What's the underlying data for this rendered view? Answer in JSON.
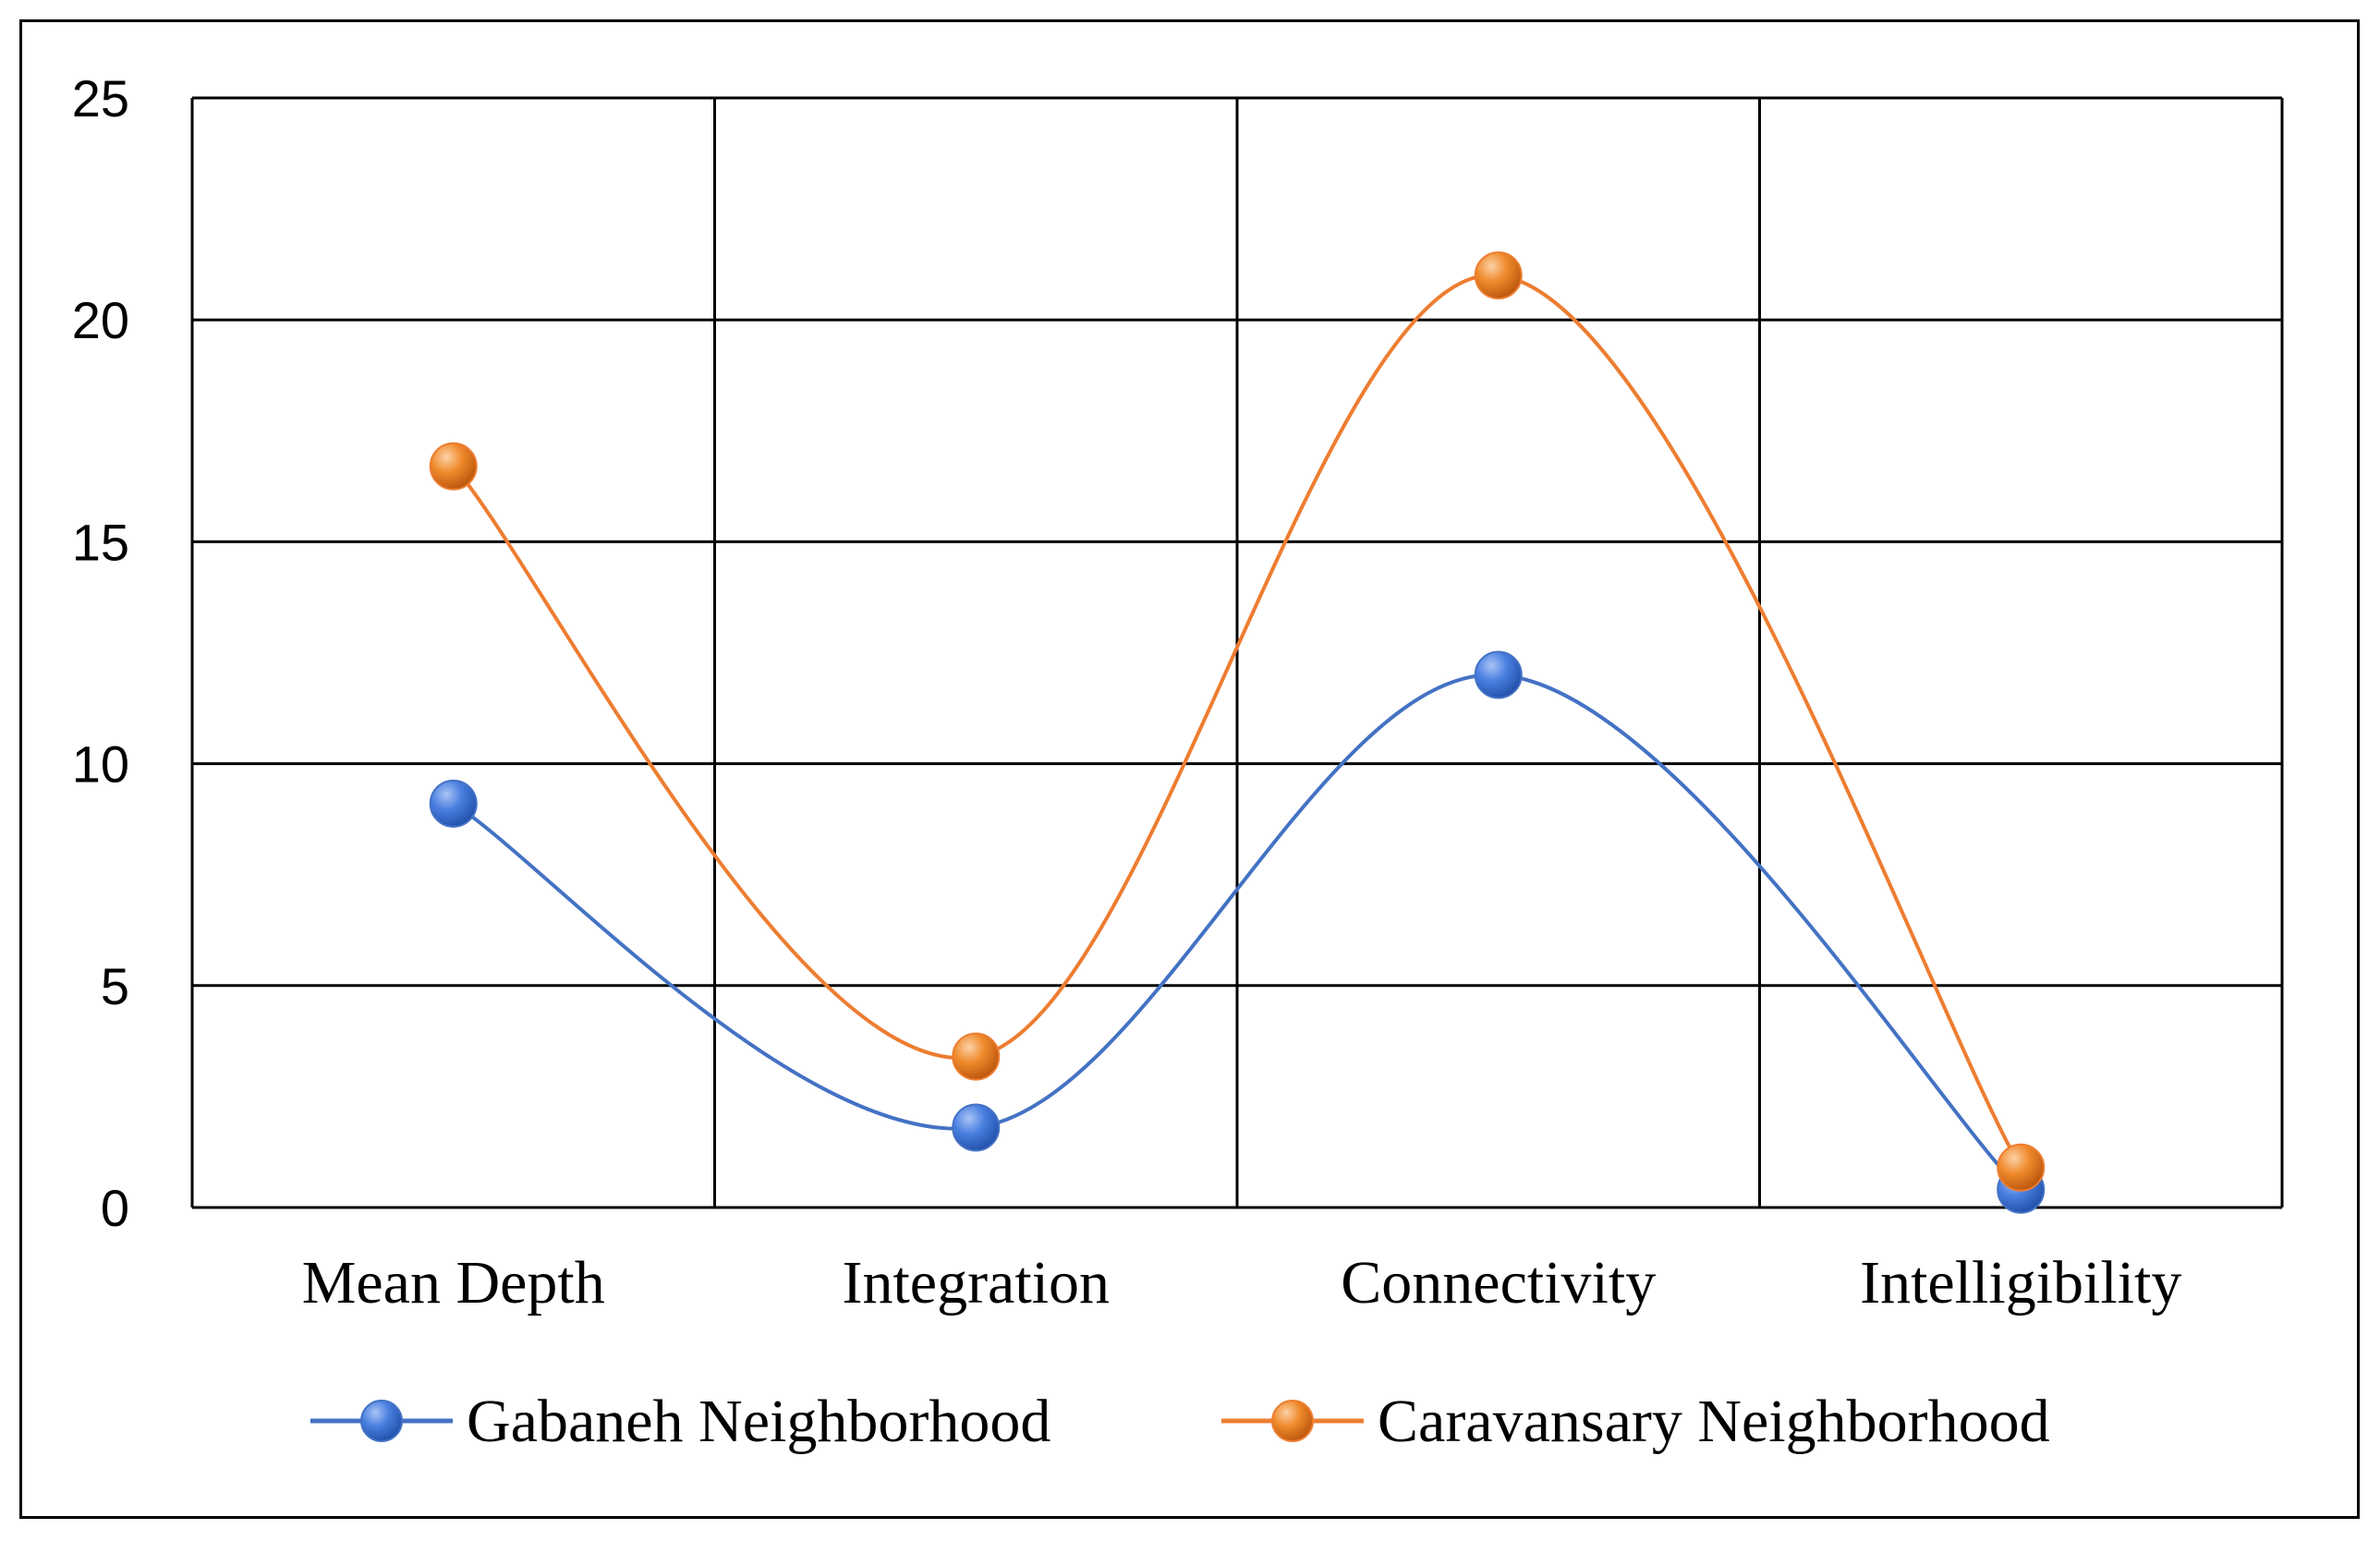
{
  "chart_data": {
    "type": "line",
    "smooth": true,
    "categories": [
      "Mean Depth",
      "Integration",
      "Connectivity",
      "Intelligibility"
    ],
    "ylim": [
      0,
      25
    ],
    "yticks": [
      0,
      5,
      10,
      15,
      20,
      25
    ],
    "grid": true,
    "legend": "bottom",
    "series": [
      {
        "name": "Gabaneh Neighborhood",
        "color": "#4472C4",
        "values": [
          9.1,
          1.8,
          12.0,
          0.4
        ]
      },
      {
        "name": "Caravansary Neighborhood",
        "color": "#ED7D31",
        "values": [
          16.7,
          3.4,
          21.0,
          0.9
        ]
      }
    ]
  }
}
